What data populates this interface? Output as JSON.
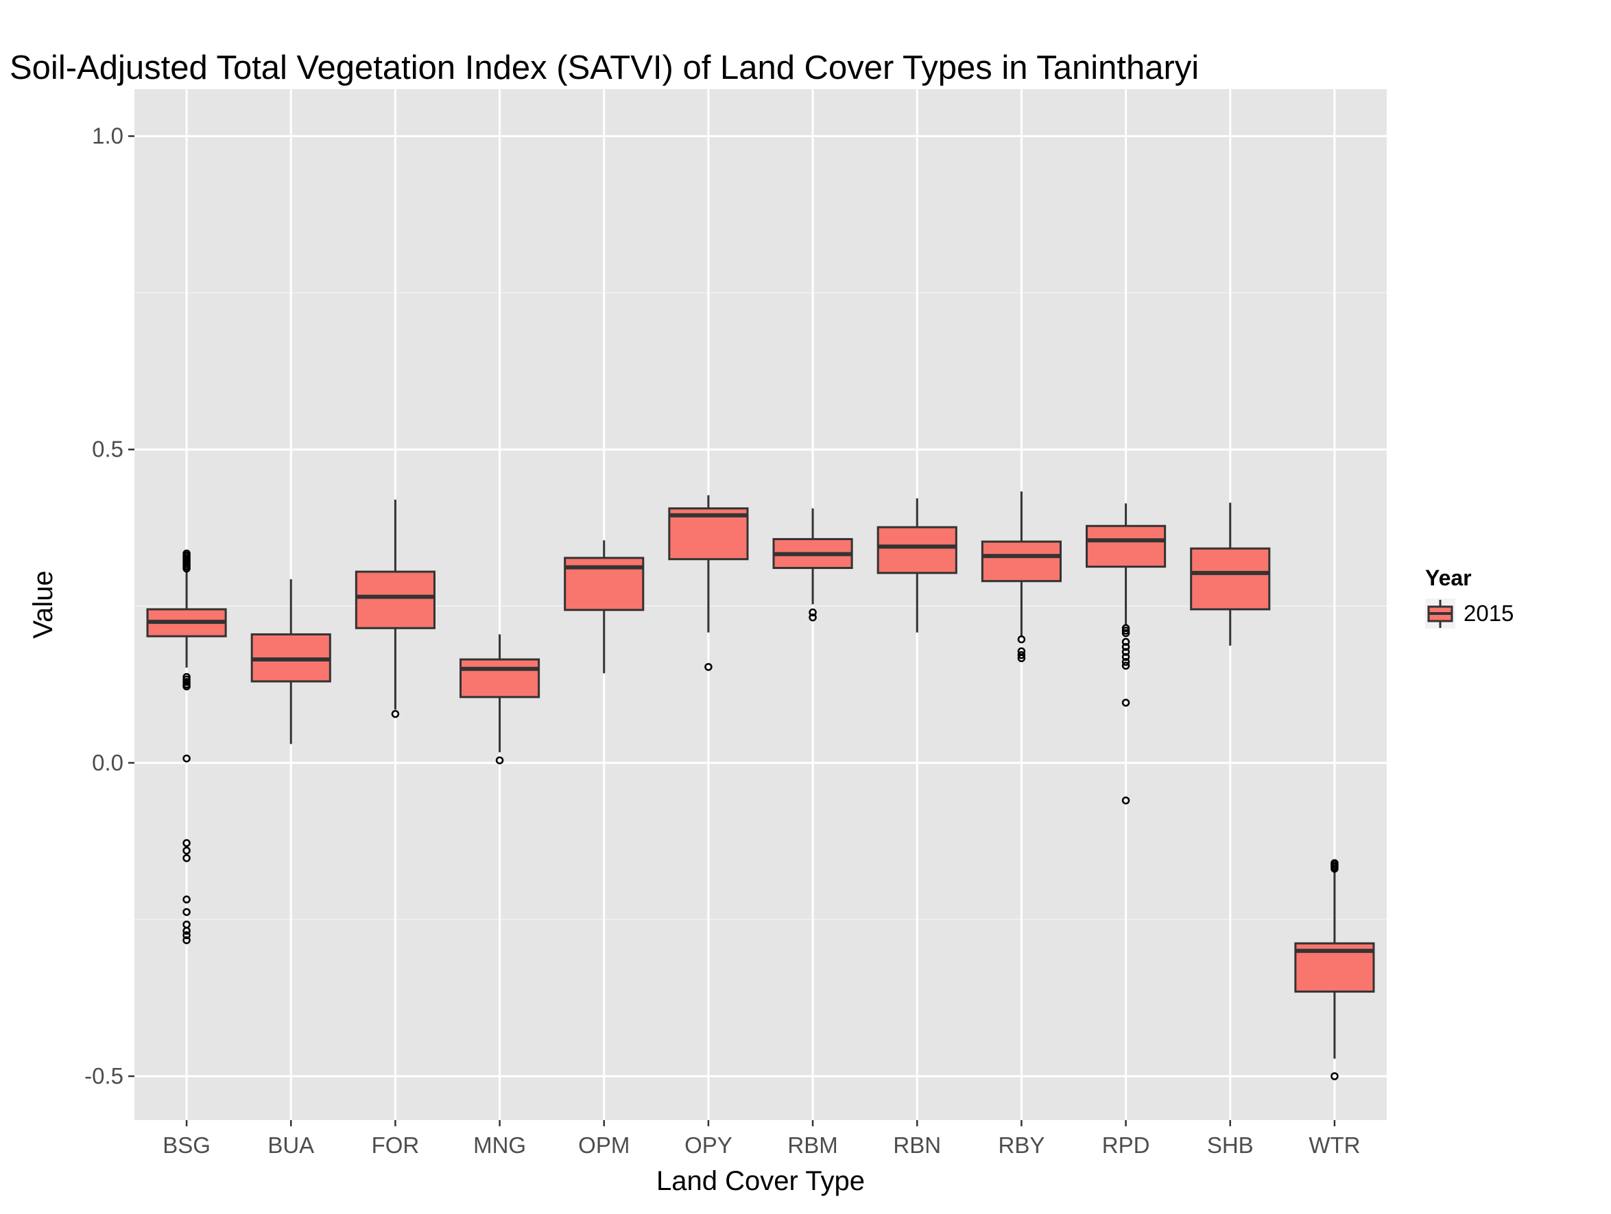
{
  "chart_data": {
    "type": "boxplot",
    "title": "Soil-Adjusted Total Vegetation Index (SATVI) of Land Cover Types in Tanintharyi",
    "xlabel": "Land Cover Type",
    "ylabel": "Value",
    "ylim": [
      -0.57,
      1.075
    ],
    "yticks": [
      -0.5,
      0.0,
      0.5,
      1.0
    ],
    "ytick_labels": [
      "-0.5",
      "0.0",
      "0.5",
      "1.0"
    ],
    "grid": true,
    "legend": {
      "title": "Year",
      "placement": "right",
      "entries": [
        "2015"
      ]
    },
    "colors": {
      "fill": "#F8766D",
      "stroke": "#333333",
      "panel": "#E5E5E5",
      "grid": "#FFFFFF"
    },
    "categories": [
      "BSG",
      "BUA",
      "FOR",
      "MNG",
      "OPM",
      "OPY",
      "RBM",
      "RBN",
      "RBY",
      "RPD",
      "SHB",
      "WTR"
    ],
    "series": [
      {
        "name": "2015",
        "boxes": [
          {
            "category": "BSG",
            "whisker_low": 0.152,
            "q1": 0.202,
            "median": 0.225,
            "q3": 0.245,
            "whisker_high": 0.305,
            "outliers": [
              0.334,
              0.331,
              0.328,
              0.325,
              0.322,
              0.319,
              0.316,
              0.313,
              0.31,
              0.137,
              0.133,
              0.129,
              0.125,
              0.122,
              0.007,
              -0.128,
              -0.14,
              -0.152,
              -0.218,
              -0.238,
              -0.258,
              -0.268,
              -0.275,
              -0.283
            ]
          },
          {
            "category": "BUA",
            "whisker_low": 0.03,
            "q1": 0.13,
            "median": 0.165,
            "q3": 0.205,
            "whisker_high": 0.293,
            "outliers": []
          },
          {
            "category": "FOR",
            "whisker_low": 0.085,
            "q1": 0.215,
            "median": 0.265,
            "q3": 0.305,
            "whisker_high": 0.42,
            "outliers": [
              0.078
            ]
          },
          {
            "category": "MNG",
            "whisker_low": 0.017,
            "q1": 0.105,
            "median": 0.15,
            "q3": 0.165,
            "whisker_high": 0.205,
            "outliers": [
              0.004
            ]
          },
          {
            "category": "OPM",
            "whisker_low": 0.143,
            "q1": 0.244,
            "median": 0.312,
            "q3": 0.327,
            "whisker_high": 0.355,
            "outliers": []
          },
          {
            "category": "OPY",
            "whisker_low": 0.208,
            "q1": 0.325,
            "median": 0.395,
            "q3": 0.406,
            "whisker_high": 0.427,
            "outliers": [
              0.153
            ]
          },
          {
            "category": "RBM",
            "whisker_low": 0.253,
            "q1": 0.311,
            "median": 0.333,
            "q3": 0.357,
            "whisker_high": 0.406,
            "outliers": [
              0.24,
              0.232
            ]
          },
          {
            "category": "RBN",
            "whisker_low": 0.208,
            "q1": 0.303,
            "median": 0.345,
            "q3": 0.376,
            "whisker_high": 0.422,
            "outliers": []
          },
          {
            "category": "RBY",
            "whisker_low": 0.202,
            "q1": 0.29,
            "median": 0.33,
            "q3": 0.353,
            "whisker_high": 0.433,
            "outliers": [
              0.197,
              0.178,
              0.172,
              0.167
            ]
          },
          {
            "category": "RPD",
            "whisker_low": 0.22,
            "q1": 0.313,
            "median": 0.355,
            "q3": 0.378,
            "whisker_high": 0.414,
            "outliers": [
              0.215,
              0.211,
              0.207,
              0.193,
              0.185,
              0.177,
              0.169,
              0.161,
              0.155,
              0.096,
              -0.06
            ]
          },
          {
            "category": "SHB",
            "whisker_low": 0.187,
            "q1": 0.245,
            "median": 0.303,
            "q3": 0.342,
            "whisker_high": 0.415,
            "outliers": []
          },
          {
            "category": "WTR",
            "whisker_low": -0.472,
            "q1": -0.365,
            "median": -0.3,
            "q3": -0.288,
            "whisker_high": -0.172,
            "outliers": [
              -0.16,
              -0.163,
              -0.166,
              -0.169,
              -0.5
            ]
          }
        ]
      }
    ]
  }
}
